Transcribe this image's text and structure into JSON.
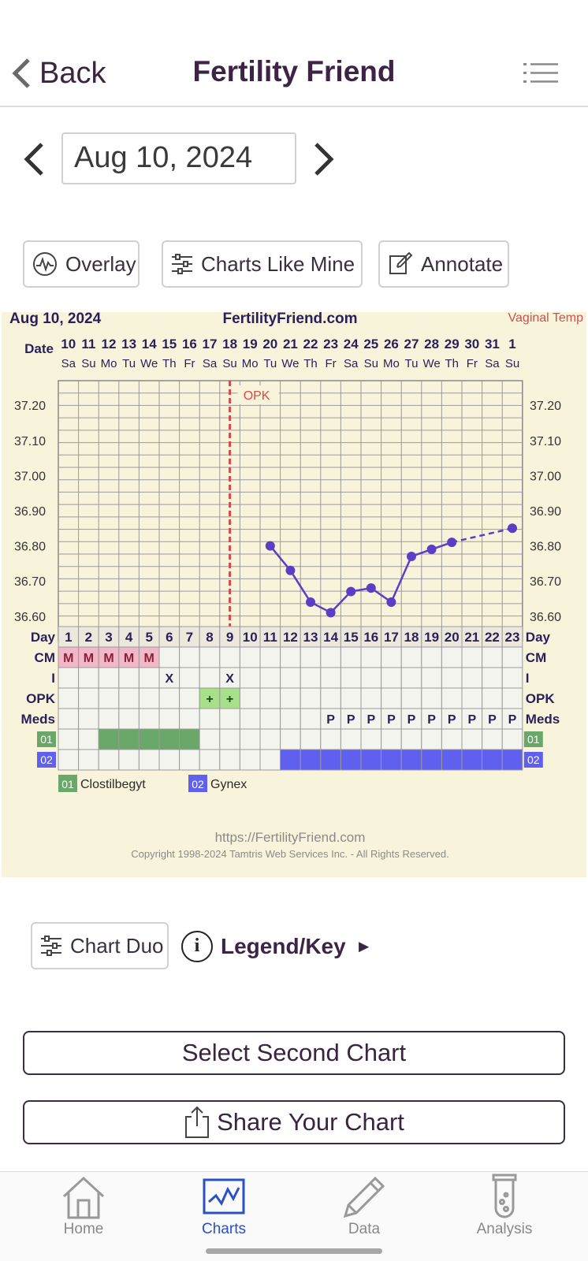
{
  "header": {
    "back_label": "Back",
    "title": "Fertility Friend",
    "menu_icon": "list-menu-icon"
  },
  "date_nav": {
    "date": "Aug 10, 2024",
    "prev_icon": "chevron-left-icon",
    "next_icon": "chevron-right-icon"
  },
  "toolbar": {
    "overlay_label": "Overlay",
    "charts_like_mine_label": "Charts Like Mine",
    "annotate_label": "Annotate"
  },
  "chart": {
    "date_label": "Aug 10, 2024",
    "site": "FertilityFriend.com",
    "temp_type": "Vaginal Temp",
    "row_date": "Date",
    "row_day": "Day",
    "row_cm": "CM",
    "row_i": "I",
    "row_opk": "OPK",
    "row_meds": "Meds",
    "opk_annotation": "OPK",
    "med1_code": "01",
    "med2_code": "02",
    "med1_name": "Clostilbegyt",
    "med2_name": "Gynex",
    "footer_url": "https://FertilityFriend.com",
    "footer_copyright": "Copyright 1998-2024 Tamtris Web Services Inc. - All Rights Reserved.",
    "colors": {
      "line": "#5a3fc4",
      "cm": "#f2b8c8",
      "opk": "#a8e08a",
      "med1": "#6aa86a",
      "med2": "#5f5ff0",
      "opk_line": "#d94848"
    }
  },
  "chart_data": {
    "type": "line",
    "dates": [
      "10",
      "11",
      "12",
      "13",
      "14",
      "15",
      "16",
      "17",
      "18",
      "19",
      "20",
      "21",
      "22",
      "23",
      "24",
      "25",
      "26",
      "27",
      "28",
      "29",
      "30",
      "31",
      "1"
    ],
    "weekdays": [
      "Sa",
      "Su",
      "Mo",
      "Tu",
      "We",
      "Th",
      "Fr",
      "Sa",
      "Su",
      "Mo",
      "Tu",
      "We",
      "Th",
      "Fr",
      "Sa",
      "Su",
      "Mo",
      "Tu",
      "We",
      "Th",
      "Fr",
      "Sa",
      "Su"
    ],
    "days": [
      "1",
      "2",
      "3",
      "4",
      "5",
      "6",
      "7",
      "8",
      "9",
      "10",
      "11",
      "12",
      "13",
      "14",
      "15",
      "16",
      "17",
      "18",
      "19",
      "20",
      "21",
      "22",
      "23"
    ],
    "y_ticks": [
      "37.20",
      "37.10",
      "37.00",
      "36.90",
      "36.80",
      "36.70",
      "36.60"
    ],
    "ylim": [
      36.53,
      37.27
    ],
    "series": [
      {
        "values": [
          null,
          null,
          null,
          null,
          null,
          null,
          null,
          null,
          null,
          null,
          36.8,
          36.73,
          36.64,
          36.61,
          36.67,
          36.68,
          36.64,
          36.77,
          36.79,
          36.81,
          null,
          null,
          36.85
        ]
      }
    ],
    "cm": [
      "M",
      "M",
      "M",
      "M",
      "M",
      "",
      "",
      "",
      "",
      "",
      "",
      "",
      "",
      "",
      "",
      "",
      "",
      "",
      "",
      "",
      "",
      "",
      ""
    ],
    "intercourse": [
      "",
      "",
      "",
      "",
      "",
      "X",
      "",
      "",
      "X",
      "",
      "",
      "",
      "",
      "",
      "",
      "",
      "",
      "",
      "",
      "",
      "",
      "",
      ""
    ],
    "opk": [
      "",
      "",
      "",
      "",
      "",
      "",
      "",
      "+",
      "+",
      "",
      "",
      "",
      "",
      "",
      "",
      "",
      "",
      "",
      "",
      "",
      "",
      "",
      ""
    ],
    "meds": [
      "",
      "",
      "",
      "",
      "",
      "",
      "",
      "",
      "",
      "",
      "",
      "",
      "",
      "P",
      "P",
      "P",
      "P",
      "P",
      "P",
      "P",
      "P",
      "P",
      "P"
    ],
    "med1_days": [
      3,
      4,
      5,
      6,
      7
    ],
    "med2_days": [
      12,
      13,
      14,
      15,
      16,
      17,
      18,
      19,
      20,
      21,
      22,
      23
    ],
    "opk_marker_day": 9
  },
  "actions": {
    "chart_duo_label": "Chart Duo",
    "legend_label": "Legend/Key",
    "legend_arrow": "►",
    "info_glyph": "i"
  },
  "buttons": {
    "select_second": "Select Second Chart",
    "share": "Share Your Chart"
  },
  "tabs": [
    {
      "label": "Home"
    },
    {
      "label": "Charts"
    },
    {
      "label": "Data"
    },
    {
      "label": "Analysis"
    }
  ]
}
